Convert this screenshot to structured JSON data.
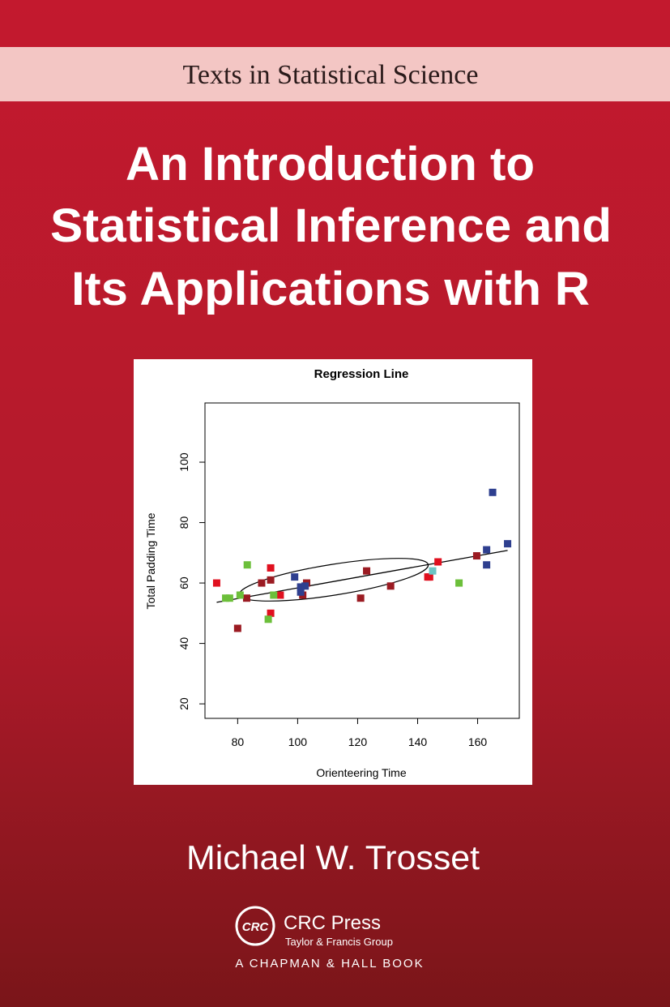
{
  "series_title": "Texts in Statistical Science",
  "title_lines": [
    "An Introduction to",
    "Statistical Inference and",
    "Its Applications with R"
  ],
  "author": "Michael W. Trosset",
  "publisher": {
    "logo": "CRC",
    "name": "CRC Press",
    "group": "Taylor & Francis Group",
    "imprint": "A CHAPMAN & HALL BOOK"
  },
  "chart_data": {
    "type": "scatter",
    "title": "Regression Line",
    "x_label": "Orienteering Time",
    "y_label": "Total Padding Time",
    "xlim": [
      69.1,
      173.9
    ],
    "ylim": [
      15.2,
      119.6
    ],
    "xticks": [
      80,
      100,
      120,
      140,
      160
    ],
    "yticks": [
      20,
      40,
      60,
      80,
      100
    ],
    "series": [
      {
        "color": "#e0101f",
        "x": [
          73,
          91,
          91,
          94.2,
          143.4,
          146.8,
          144
        ],
        "values": [
          60,
          65,
          50,
          56,
          62,
          67,
          62
        ]
      },
      {
        "color": "#9b1b22",
        "x": [
          80,
          88,
          91,
          83,
          103,
          101.7,
          121,
          123,
          131,
          159.7
        ],
        "values": [
          45,
          60,
          61,
          55,
          60,
          56,
          55,
          64,
          59,
          69
        ]
      },
      {
        "color": "#6cbf3a",
        "x": [
          83.2,
          76,
          77.3,
          80.8,
          92,
          90.2,
          153.8
        ],
        "values": [
          66,
          55,
          55,
          56,
          56,
          48,
          60
        ]
      },
      {
        "color": "#2e3f8f",
        "x": [
          99,
          101,
          101,
          102.5,
          165,
          163,
          163,
          170
        ],
        "values": [
          62,
          58.7,
          57,
          59,
          90,
          71,
          66,
          73
        ]
      },
      {
        "color": "#6cc4c4",
        "x": [
          145
        ],
        "values": [
          64
        ]
      }
    ],
    "regression_line": {
      "color": "#000000",
      "x": [
        73,
        170
      ],
      "values": [
        53.6,
        70.8
      ]
    }
  }
}
